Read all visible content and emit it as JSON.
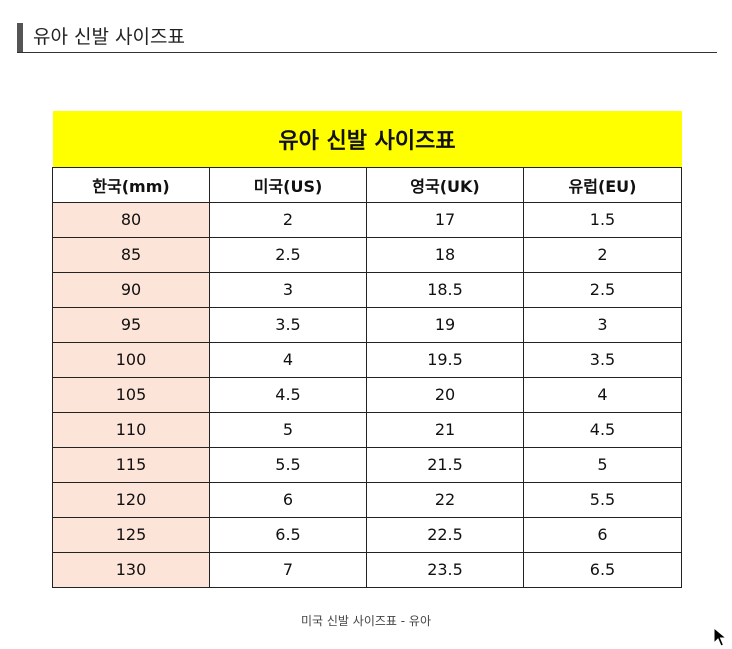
{
  "heading": {
    "title": "유아 신발 사이즈표"
  },
  "table": {
    "caption": "유아 신발 사이즈표",
    "headers": [
      "한국(mm)",
      "미국(US)",
      "영국(UK)",
      "유럽(EU)"
    ],
    "rows": [
      [
        "80",
        "2",
        "17",
        "1.5"
      ],
      [
        "85",
        "2.5",
        "18",
        "2"
      ],
      [
        "90",
        "3",
        "18.5",
        "2.5"
      ],
      [
        "95",
        "3.5",
        "19",
        "3"
      ],
      [
        "100",
        "4",
        "19.5",
        "3.5"
      ],
      [
        "105",
        "4.5",
        "20",
        "4"
      ],
      [
        "110",
        "5",
        "21",
        "4.5"
      ],
      [
        "115",
        "5.5",
        "21.5",
        "5"
      ],
      [
        "120",
        "6",
        "22",
        "5.5"
      ],
      [
        "125",
        "6.5",
        "22.5",
        "6"
      ],
      [
        "130",
        "7",
        "23.5",
        "6.5"
      ]
    ]
  },
  "footer": {
    "caption": "미국 신발 사이즈표 - 유아"
  },
  "colors": {
    "caption_bg": "#ffff00",
    "korea_column_bg": "#fde4d8",
    "heading_bar": "#555555"
  },
  "icons": {
    "cursor": "mouse-pointer-icon"
  }
}
